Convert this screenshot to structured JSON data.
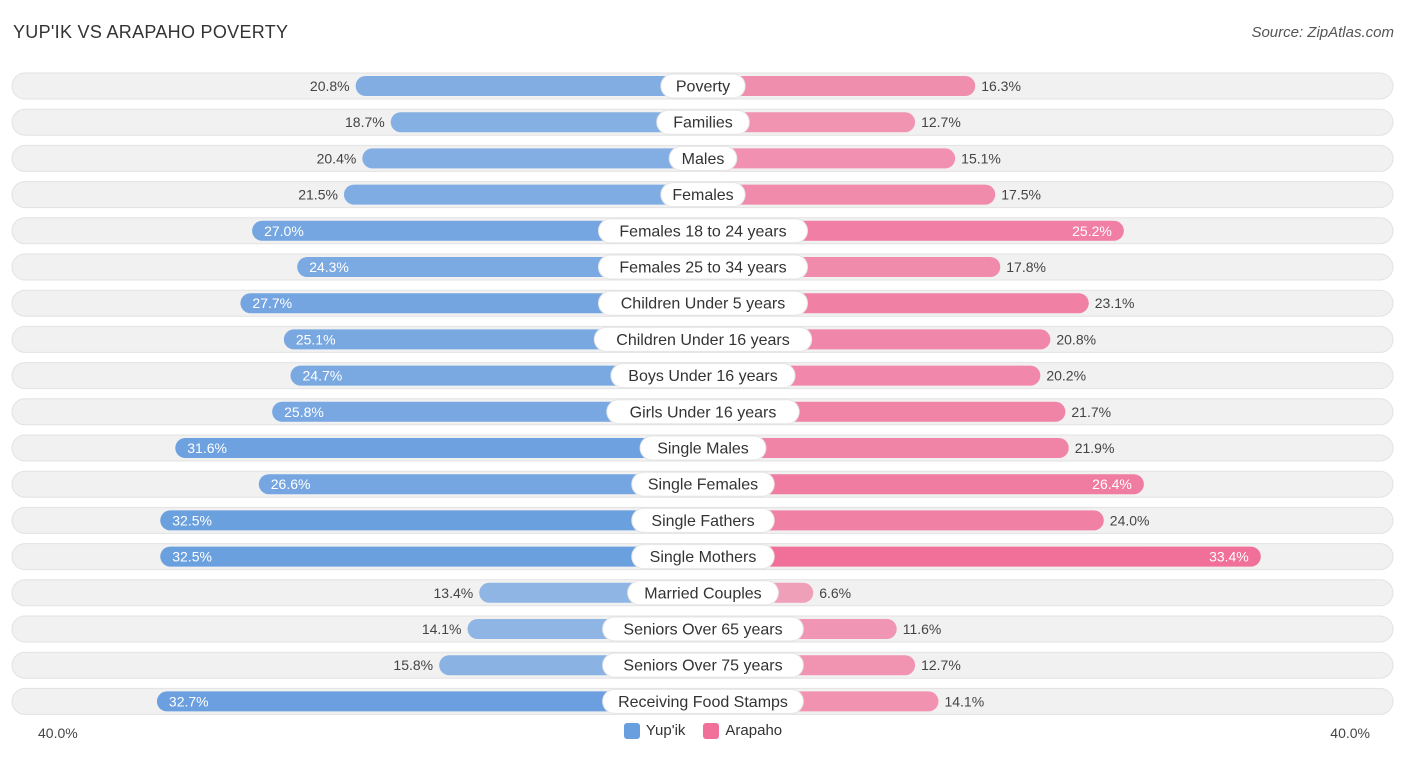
{
  "title": "YUP'IK VS ARAPAHO POVERTY",
  "source": "Source: ZipAtlas.com",
  "colors": {
    "yupik": "#6a9fdf",
    "arapaho": "#f0709a"
  },
  "chart_data": {
    "type": "bar",
    "orientation": "horizontal-diverging",
    "categories": [
      "Poverty",
      "Families",
      "Males",
      "Females",
      "Females 18 to 24 years",
      "Females 25 to 34 years",
      "Children Under 5 years",
      "Children Under 16 years",
      "Boys Under 16 years",
      "Girls Under 16 years",
      "Single Males",
      "Single Females",
      "Single Fathers",
      "Single Mothers",
      "Married Couples",
      "Seniors Over 65 years",
      "Seniors Over 75 years",
      "Receiving Food Stamps"
    ],
    "series": [
      {
        "name": "Yup'ik",
        "values": [
          20.8,
          18.7,
          20.4,
          21.5,
          27.0,
          24.3,
          27.7,
          25.1,
          24.7,
          25.8,
          31.6,
          26.6,
          32.5,
          32.5,
          13.4,
          14.1,
          15.8,
          32.7
        ],
        "labels": [
          "20.8%",
          "18.7%",
          "20.4%",
          "21.5%",
          "27.0%",
          "24.3%",
          "27.7%",
          "25.1%",
          "24.7%",
          "25.8%",
          "31.6%",
          "26.6%",
          "32.5%",
          "32.5%",
          "13.4%",
          "14.1%",
          "15.8%",
          "32.7%"
        ]
      },
      {
        "name": "Arapaho",
        "values": [
          16.3,
          12.7,
          15.1,
          17.5,
          25.2,
          17.8,
          23.1,
          20.8,
          20.2,
          21.7,
          21.9,
          26.4,
          24.0,
          33.4,
          6.6,
          11.6,
          12.7,
          14.1
        ],
        "labels": [
          "16.3%",
          "12.7%",
          "15.1%",
          "17.5%",
          "25.2%",
          "17.8%",
          "23.1%",
          "20.8%",
          "20.2%",
          "21.7%",
          "21.9%",
          "26.4%",
          "24.0%",
          "33.4%",
          "6.6%",
          "11.6%",
          "12.7%",
          "14.1%"
        ]
      }
    ],
    "xlim": [
      0,
      40
    ],
    "axis_labels": {
      "left": "40.0%",
      "right": "40.0%"
    },
    "legend": [
      "Yup'ik",
      "Arapaho"
    ],
    "legend_position": "bottom-center"
  }
}
